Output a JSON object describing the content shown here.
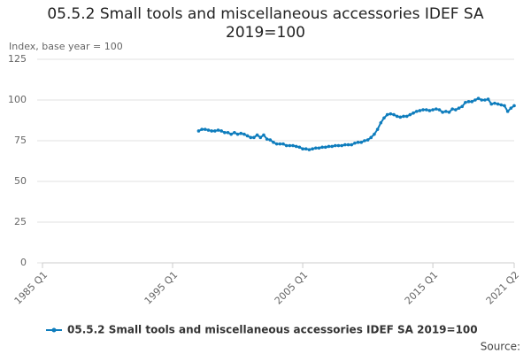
{
  "chart_data": {
    "type": "line",
    "title": "05.5.2 Small tools and miscellaneous accessories IDEF SA 2019=100",
    "y_label": "Index, base year = 100",
    "source": "Source:",
    "categories": [
      "1985 Q1",
      null,
      null,
      null,
      null,
      null,
      null,
      null,
      null,
      null,
      null,
      null,
      null,
      null,
      null,
      null,
      null,
      null,
      null,
      null,
      null,
      null,
      null,
      null,
      null,
      null,
      null,
      null,
      null,
      null,
      null,
      null,
      null,
      null,
      null,
      null,
      null,
      null,
      null,
      null,
      "1995 Q1",
      null,
      null,
      null,
      null,
      null,
      null,
      null,
      null,
      null,
      null,
      null,
      null,
      null,
      null,
      null,
      null,
      null,
      null,
      null,
      null,
      null,
      null,
      null,
      null,
      null,
      null,
      null,
      null,
      null,
      null,
      null,
      null,
      null,
      null,
      null,
      null,
      null,
      null,
      null,
      "2005 Q1",
      null,
      null,
      null,
      null,
      null,
      null,
      null,
      null,
      null,
      null,
      null,
      null,
      null,
      null,
      null,
      null,
      null,
      null,
      null,
      null,
      null,
      null,
      null,
      null,
      null,
      null,
      null,
      null,
      null,
      null,
      null,
      null,
      null,
      null,
      null,
      null,
      null,
      null,
      null,
      "2015 Q1",
      null,
      null,
      null,
      null,
      null,
      null,
      null,
      null,
      null,
      null,
      null,
      null,
      null,
      null,
      null,
      null,
      null,
      null,
      null,
      null,
      null,
      null,
      null,
      null,
      "2021 Q2"
    ],
    "series": [
      {
        "name": "05.5.2 Small tools and miscellaneous accessories IDEF SA 2019=100",
        "color": "#0f7dbd",
        "values": [
          null,
          null,
          null,
          null,
          null,
          null,
          null,
          null,
          null,
          null,
          null,
          null,
          null,
          null,
          null,
          null,
          null,
          null,
          null,
          null,
          null,
          null,
          null,
          null,
          null,
          null,
          null,
          null,
          null,
          null,
          null,
          null,
          null,
          null,
          null,
          null,
          null,
          null,
          null,
          null,
          null,
          null,
          null,
          null,
          null,
          null,
          null,
          null,
          81,
          82,
          82,
          81.5,
          81,
          81,
          81.5,
          81,
          80,
          80,
          79,
          80,
          79,
          79.5,
          79,
          78,
          77,
          77,
          78.5,
          77,
          78.5,
          76,
          75.5,
          74,
          73,
          73,
          73,
          72,
          72,
          72,
          71.5,
          71,
          70,
          70,
          69.5,
          70,
          70.5,
          70.5,
          71,
          71,
          71.5,
          71.5,
          72,
          72,
          72,
          72.5,
          72.5,
          72.5,
          73.5,
          74,
          74,
          75,
          75.5,
          77,
          79,
          82,
          86,
          89,
          91,
          91.5,
          91,
          90,
          89.5,
          90,
          90,
          91,
          92,
          93,
          93.5,
          94,
          94,
          93.5,
          94,
          94.5,
          94,
          92.5,
          93,
          92.5,
          94.5,
          94,
          95,
          96,
          98.5,
          99,
          99,
          100,
          101,
          100,
          100,
          100.5,
          97.5,
          98,
          97.5,
          97,
          96.5,
          93,
          95,
          96.5
        ]
      }
    ],
    "ylim": [
      0,
      125
    ],
    "yticks": [
      0,
      25,
      50,
      75,
      100,
      125
    ],
    "grid": true
  }
}
